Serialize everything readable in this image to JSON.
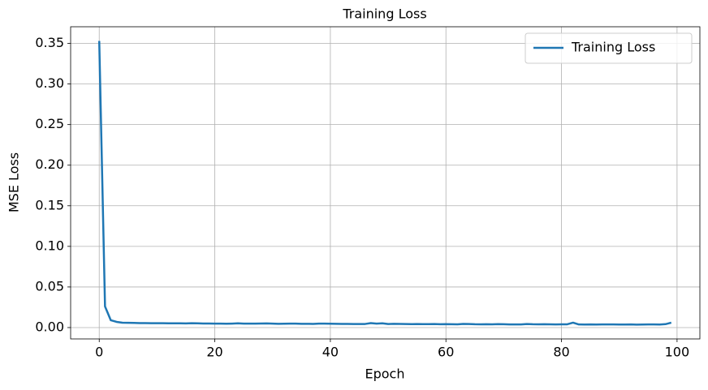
{
  "chart_data": {
    "type": "line",
    "title": "Training Loss",
    "x_label": "Epoch",
    "y_label": "MSE Loss",
    "x": [
      0,
      1,
      2,
      3,
      4,
      5,
      6,
      7,
      8,
      9,
      10,
      11,
      12,
      13,
      14,
      15,
      16,
      17,
      18,
      19,
      20,
      21,
      22,
      23,
      24,
      25,
      26,
      27,
      28,
      29,
      30,
      31,
      32,
      33,
      34,
      35,
      36,
      37,
      38,
      39,
      40,
      41,
      42,
      43,
      44,
      45,
      46,
      47,
      48,
      49,
      50,
      51,
      52,
      53,
      54,
      55,
      56,
      57,
      58,
      59,
      60,
      61,
      62,
      63,
      64,
      65,
      66,
      67,
      68,
      69,
      70,
      71,
      72,
      73,
      74,
      75,
      76,
      77,
      78,
      79,
      80,
      81,
      82,
      83,
      84,
      85,
      86,
      87,
      88,
      89,
      90,
      91,
      92,
      93,
      94,
      95,
      96,
      97,
      98,
      99
    ],
    "series": [
      {
        "name": "Training Loss",
        "color": "#1f77b4",
        "values": [
          0.353,
          0.026,
          0.009,
          0.007,
          0.006,
          0.0058,
          0.0057,
          0.0055,
          0.0055,
          0.0054,
          0.0053,
          0.0053,
          0.0052,
          0.0052,
          0.0052,
          0.0051,
          0.0053,
          0.0052,
          0.005,
          0.005,
          0.0049,
          0.0048,
          0.0047,
          0.0049,
          0.0052,
          0.0048,
          0.0048,
          0.0049,
          0.005,
          0.0051,
          0.0049,
          0.0046,
          0.0047,
          0.0048,
          0.0049,
          0.0046,
          0.0046,
          0.0045,
          0.0048,
          0.0049,
          0.0047,
          0.0046,
          0.0045,
          0.0045,
          0.0044,
          0.0044,
          0.0044,
          0.0055,
          0.0048,
          0.0052,
          0.0043,
          0.0046,
          0.0045,
          0.0044,
          0.0042,
          0.0044,
          0.0042,
          0.0042,
          0.0043,
          0.0041,
          0.0042,
          0.0041,
          0.004,
          0.0045,
          0.0044,
          0.0041,
          0.004,
          0.0041,
          0.004,
          0.0042,
          0.0041,
          0.0039,
          0.0038,
          0.0039,
          0.0044,
          0.0041,
          0.004,
          0.0041,
          0.004,
          0.0038,
          0.004,
          0.004,
          0.006,
          0.0038,
          0.0037,
          0.0039,
          0.0037,
          0.0038,
          0.0038,
          0.0038,
          0.0037,
          0.0037,
          0.0039,
          0.0036,
          0.0037,
          0.0038,
          0.0038,
          0.0037,
          0.0042,
          0.006
        ]
      }
    ],
    "xlim": [
      -4.95,
      103.95
    ],
    "xticks": [
      0,
      20,
      40,
      60,
      80,
      100
    ],
    "ylim": [
      -0.014,
      0.3705
    ],
    "yticks": [
      {
        "value": 0,
        "label": "0.00"
      },
      {
        "value": 0.05,
        "label": "0.05"
      },
      {
        "value": 0.1,
        "label": "0.10"
      },
      {
        "value": 0.15,
        "label": "0.15"
      },
      {
        "value": 0.2,
        "label": "0.20"
      },
      {
        "value": 0.25,
        "label": "0.25"
      },
      {
        "value": 0.3,
        "label": "0.30"
      },
      {
        "value": 0.35,
        "label": "0.35"
      }
    ],
    "grid": true,
    "legend": "upper right"
  }
}
